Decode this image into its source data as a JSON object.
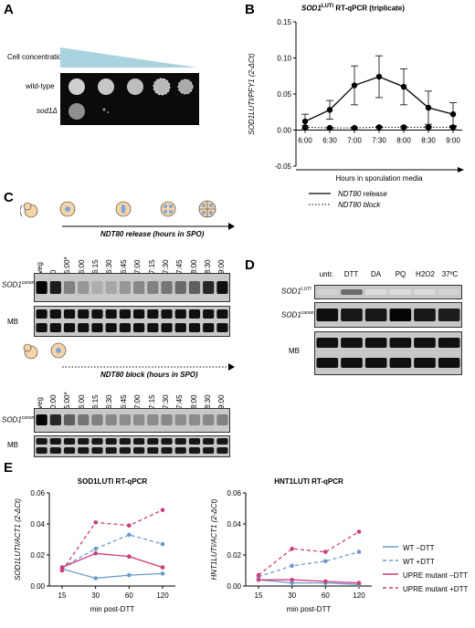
{
  "panels": {
    "A": "A",
    "B": "B",
    "C": "C",
    "D": "D",
    "E": "E"
  },
  "panelA": {
    "cell_concentration": "Cell concentration",
    "rows": [
      "wild-type",
      "sod1Δ"
    ]
  },
  "panelB": {
    "title_gene": "SOD1",
    "title_sup": "LUTI",
    "title_rest": " RT-qPCR (triplicate)",
    "ylabel": "SOD1LUTI/PFY1 (2-ΔCt)",
    "xlabel": "Hours in sporulation media",
    "legend": [
      "NDT80 release",
      "NDT80 block"
    ]
  },
  "panelC": {
    "release_label": "NDT80 release (hours in SPO)",
    "block_label": "NDT80 block (hours in SPO)",
    "lanes_release": [
      "veg",
      "0",
      "5:00*",
      "6:00",
      "6:15",
      "6:30",
      "6:45",
      "7:00",
      "7:15",
      "7:30",
      "7:45",
      "8:00",
      "8:30",
      "9:00"
    ],
    "lanes_block": [
      "veg",
      "0:00",
      "5:00*",
      "6:00",
      "6:15",
      "6:30",
      "6:45",
      "7:00",
      "7:15",
      "7:30",
      "7:45",
      "8:00",
      "8:30",
      "9:00"
    ],
    "row_sod1": "SOD1",
    "row_sod1_sup": "canon.",
    "row_mb": "MB"
  },
  "panelD": {
    "lanes": [
      "untr.",
      "DTT",
      "DA",
      "PQ",
      "H2O2",
      "37ºC"
    ],
    "row1": "SOD1",
    "row1_sup": "LUTI",
    "row2": "SOD1",
    "row2_sup": "canon.",
    "row3": "MB"
  },
  "panelE": {
    "left_title": "SOD1LUTI RT-qPCR",
    "right_title": "HNT1LUTI RT-qPCR",
    "left_ylabel": "SOD1LUTI/ACT1 (2-ΔCt)",
    "right_ylabel": "HNT1LUTI/ACT1 (2-ΔCt)",
    "xlabel": "min post-DTT",
    "legend": [
      "WT –DTT",
      "WT +DTT",
      "UPRE mutant –DTT",
      "UPRE mutant +DTT"
    ]
  },
  "colors": {
    "wt": "#6a9bcc",
    "upre": "#cc3f7a"
  },
  "chart_data": [
    {
      "type": "line",
      "title": "SOD1LUTI RT-qPCR (triplicate)",
      "xlabel": "Hours in sporulation media",
      "ylabel": "SOD1LUTI/PFY1 (2-ΔCt)",
      "categories": [
        "6:00",
        "6:30",
        "7:00",
        "7:30",
        "8:00",
        "8:30",
        "9:00"
      ],
      "ylim": [
        -0.05,
        0.15
      ],
      "yticks": [
        "-0.05",
        "0.00",
        "0.05",
        "0.10",
        "0.15"
      ],
      "series": [
        {
          "name": "NDT80 release",
          "values": [
            0.012,
            0.028,
            0.062,
            0.074,
            0.06,
            0.031,
            0.022
          ],
          "err": [
            0.01,
            0.013,
            0.027,
            0.029,
            0.025,
            0.023,
            0.016
          ]
        },
        {
          "name": "NDT80 block",
          "values": [
            0.004,
            0.003,
            0.003,
            0.004,
            0.004,
            0.004,
            0.004
          ],
          "err": [
            0.002,
            0.001,
            0.001,
            0.001,
            0.001,
            0.001,
            0.001
          ]
        }
      ]
    },
    {
      "type": "line",
      "title": "SOD1LUTI RT-qPCR",
      "xlabel": "min post-DTT",
      "ylabel": "SOD1LUTI/ACT1 (2-ΔCt)",
      "categories": [
        "15",
        "30",
        "60",
        "120"
      ],
      "ylim": [
        0,
        0.06
      ],
      "yticks": [
        "0.00",
        "0.02",
        "0.04",
        "0.06"
      ],
      "series": [
        {
          "name": "WT –DTT",
          "values": [
            0.011,
            0.005,
            0.007,
            0.008
          ]
        },
        {
          "name": "WT +DTT",
          "values": [
            0.012,
            0.024,
            0.033,
            0.027
          ]
        },
        {
          "name": "UPRE mutant –DTT",
          "values": [
            0.012,
            0.021,
            0.019,
            0.012
          ]
        },
        {
          "name": "UPRE mutant +DTT",
          "values": [
            0.01,
            0.041,
            0.039,
            0.049
          ]
        }
      ]
    },
    {
      "type": "line",
      "title": "HNT1LUTI RT-qPCR",
      "xlabel": "min post-DTT",
      "ylabel": "HNT1LUTI/ACT1 (2-ΔCt)",
      "categories": [
        "15",
        "30",
        "60",
        "120"
      ],
      "ylim": [
        0,
        0.06
      ],
      "yticks": [
        "0.00",
        "0.02",
        "0.04",
        "0.06"
      ],
      "series": [
        {
          "name": "WT –DTT",
          "values": [
            0.004,
            0.002,
            0.002,
            0.001
          ]
        },
        {
          "name": "WT +DTT",
          "values": [
            0.006,
            0.013,
            0.016,
            0.022
          ]
        },
        {
          "name": "UPRE mutant –DTT",
          "values": [
            0.004,
            0.004,
            0.003,
            0.002
          ]
        },
        {
          "name": "UPRE mutant +DTT",
          "values": [
            0.007,
            0.024,
            0.022,
            0.035
          ]
        }
      ]
    }
  ]
}
